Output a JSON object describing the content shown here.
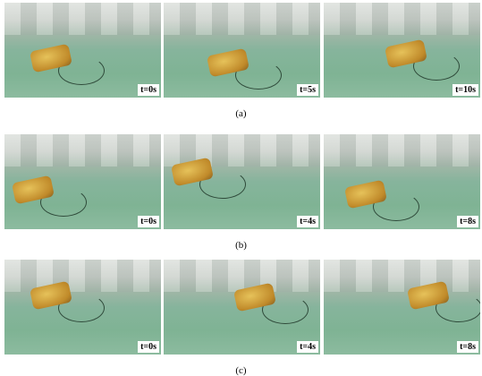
{
  "panels": [
    {
      "label": "(a)",
      "frames": [
        "t=0s",
        "t=5s",
        "t=10s"
      ]
    },
    {
      "label": "(b)",
      "frames": [
        "t=0s",
        "t=4s",
        "t=8s"
      ]
    },
    {
      "label": "(c)",
      "frames": [
        "t=0s",
        "t=4s",
        "t=8s"
      ]
    }
  ]
}
